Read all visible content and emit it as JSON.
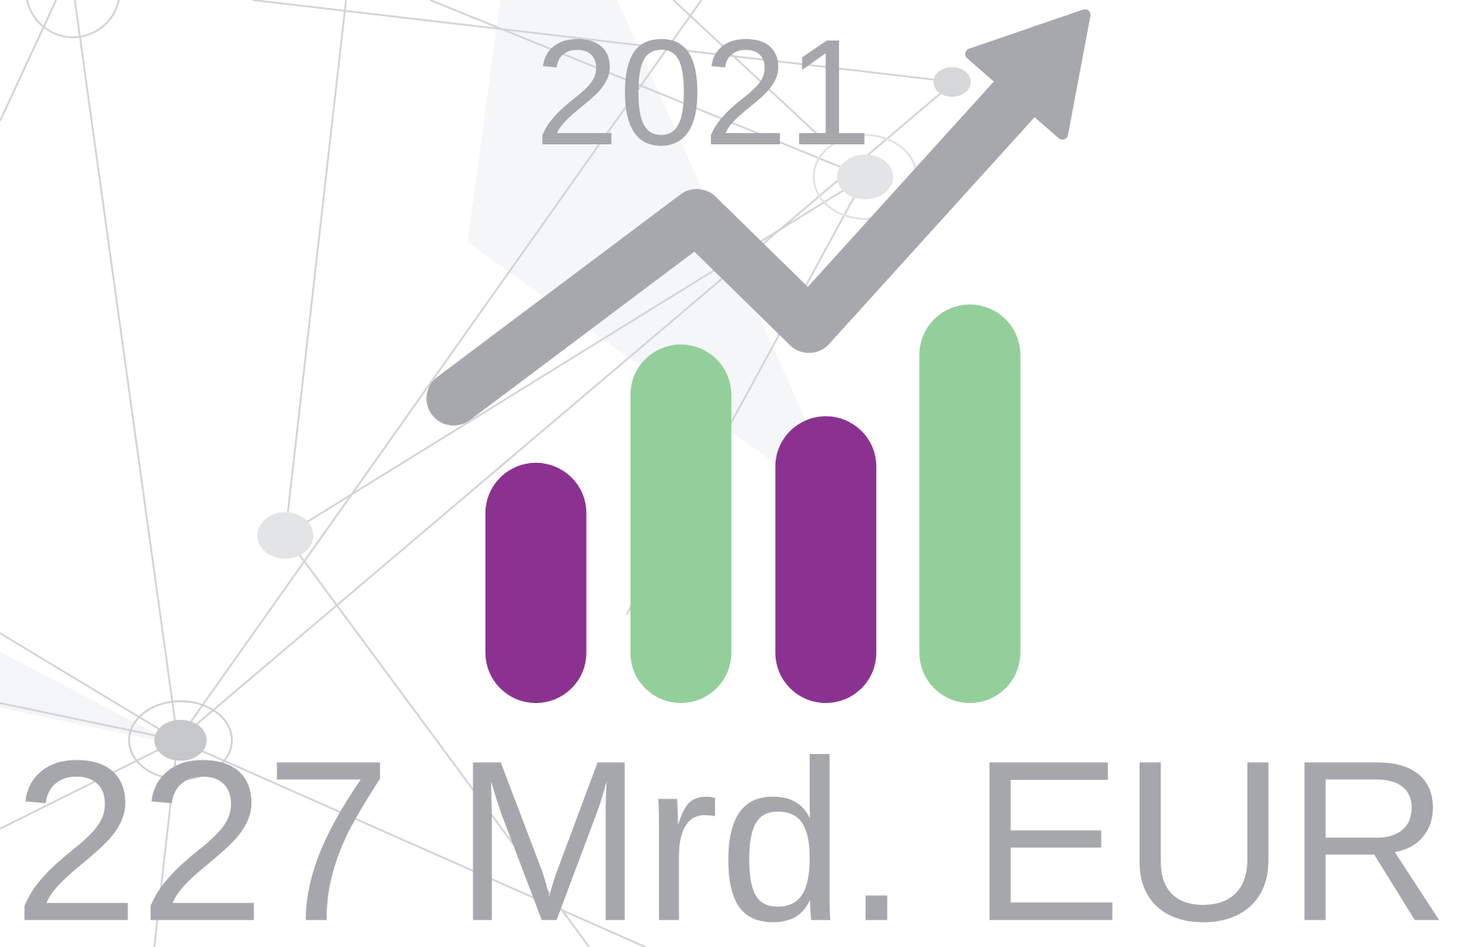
{
  "year": "2021",
  "amount": "227 Mrd. EUR"
}
